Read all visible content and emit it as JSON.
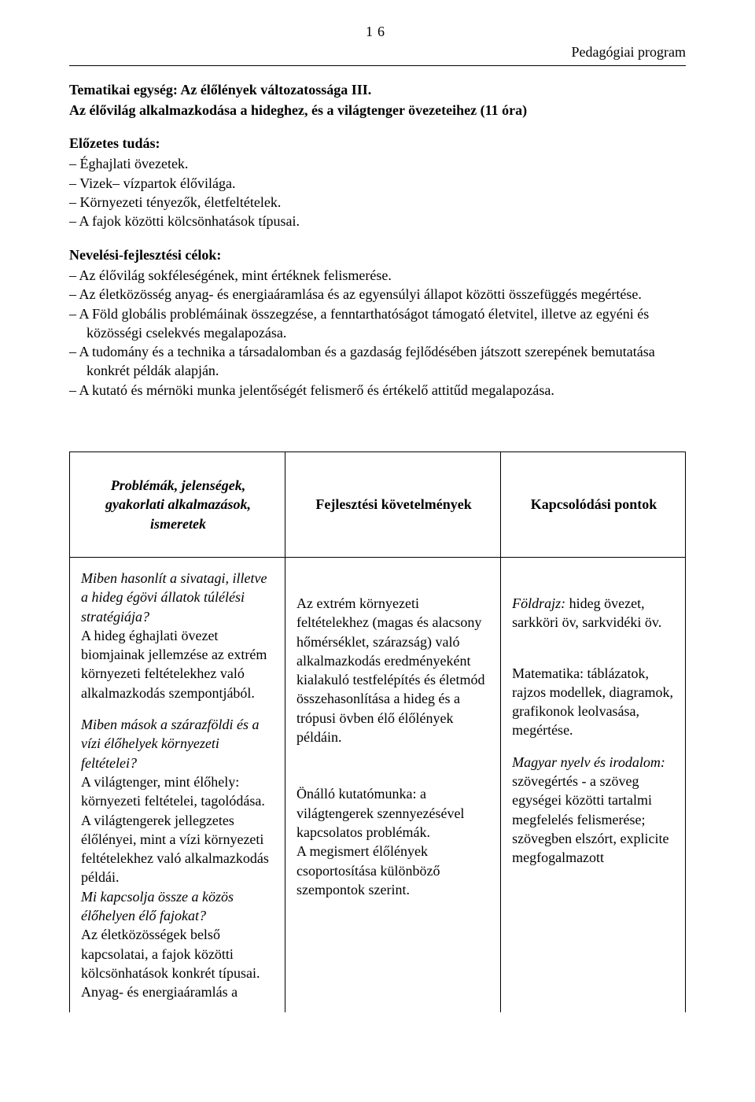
{
  "page_number": "16",
  "header_right": "Pedagógiai program",
  "section_heading_1": "Tematikai egység: Az élőlények változatossága III.",
  "section_heading_2": "Az élővilág alkalmazkodása a hideghez, és a világtenger övezeteihez (11 óra)",
  "prior_knowledge_label": "Előzetes tudás:",
  "prior_knowledge": [
    "Éghajlati övezetek.",
    "Vizek– vízpartok élővilága.",
    "Környezeti tényezők, életfeltételek.",
    "A fajok közötti kölcsönhatások típusai."
  ],
  "goals_label": "Nevelési-fejlesztési célok:",
  "goals": [
    "Az élővilág sokféleségének, mint értéknek felismerése.",
    "Az életközösség anyag- és energiaáramlása és az egyensúlyi állapot közötti összefüggés megértése.",
    "A Föld globális problémáinak összegzése, a fenntarthatóságot támogató életvitel, illetve az egyéni és közösségi cselekvés megalapozása.",
    "A tudomány és a technika a társadalomban és a gazdaság fejlődésében játszott szerepének bemutatása konkrét példák alapján.",
    "A kutató és mérnöki munka jelentőségét felismerő és értékelő attitűd megalapozása."
  ],
  "table": {
    "headers": {
      "col1_line1": "Problémák, jelenségek,",
      "col1_line2": "gyakorlati alkalmazások,",
      "col1_line3": "ismeretek",
      "col2": "Fejlesztési követelmények",
      "col3": "Kapcsolódási pontok"
    },
    "row": {
      "col1": {
        "q1": "Miben hasonlít a sivatagi, illetve a hideg égövi állatok túlélési stratégiája?",
        "p1": "A hideg éghajlati övezet biomjainak jellemzése az extrém környezeti feltételekhez való alkalmazkodás szempontjából.",
        "q2": "Miben mások a szárazföldi és a vízi élőhelyek környezeti feltételei?",
        "p2": "A világtenger, mint élőhely: környezeti feltételei, tagolódása.",
        "p3": "A világtengerek jellegzetes élőlényei, mint a vízi környezeti feltételekhez való alkalmazkodás példái.",
        "q3": "Mi kapcsolja össze a közös élőhelyen élő fajokat?",
        "p4": "Az életközösségek belső kapcsolatai, a fajok közötti kölcsönhatások konkrét típusai.",
        "p5": "Anyag- és energiaáramlás a"
      },
      "col2": {
        "p1": "Az extrém környezeti feltételekhez (magas és alacsony hőmérséklet, szárazság) való alkalmazkodás eredményeként kialakuló testfelépítés és életmód összehasonlítása a hideg és a trópusi övben élő élőlények példáin.",
        "p2": "Önálló kutatómunka: a világtengerek szennyezésével kapcsolatos problémák.",
        "p3": "A megismert élőlények csoportosítása különböző szempontok szerint."
      },
      "col3": {
        "p1a": "Földrajz:",
        "p1b": " hideg övezet, sarkköri öv, sarkvidéki öv.",
        "p2": "Matematika: táblázatok, rajzos modellek, diagramok, grafikonok leolvasása, megértése.",
        "p3a": "Magyar nyelv és irodalom:",
        "p3b": " szövegértés - a szöveg egységei közötti tartalmi megfelelés felismerése; szövegben elszórt, explicite megfogalmazott"
      }
    }
  }
}
